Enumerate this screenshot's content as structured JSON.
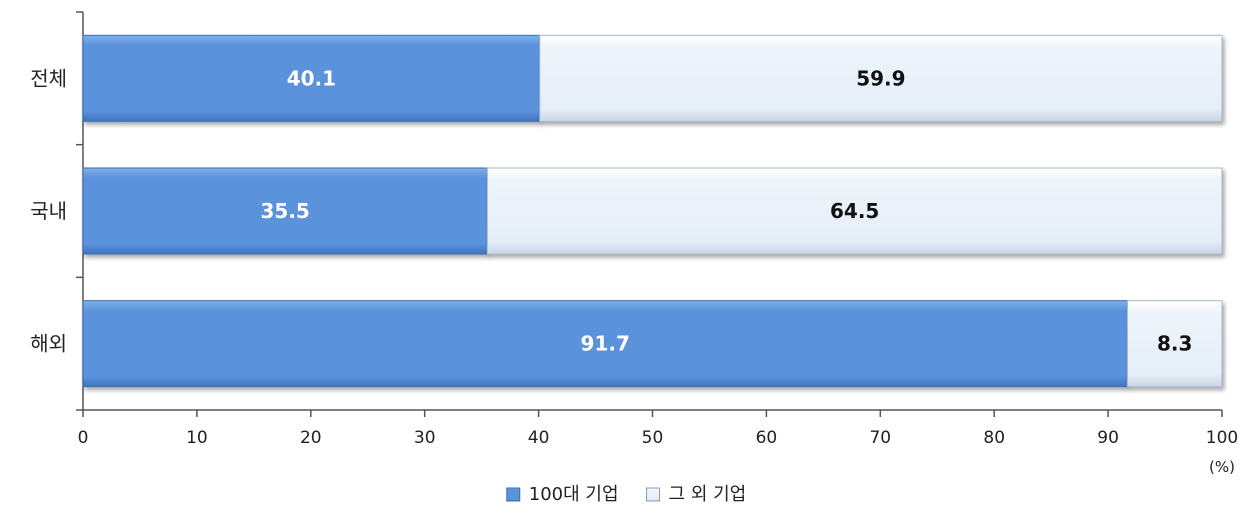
{
  "chart_data": {
    "type": "bar",
    "orientation": "horizontal",
    "stacked": true,
    "categories": [
      "전체",
      "국내",
      "해외"
    ],
    "series": [
      {
        "name": "100대 기업",
        "values": [
          40.1,
          35.5,
          91.7
        ],
        "color": "#5a93dc",
        "label_color": "#ffffff"
      },
      {
        "name": "그 외 기업",
        "values": [
          59.9,
          64.5,
          8.3
        ],
        "color": "#e9f1fa",
        "label_color": "#111111"
      }
    ],
    "xlim": [
      0,
      100
    ],
    "xticks": [
      0,
      10,
      20,
      30,
      40,
      50,
      60,
      70,
      80,
      90,
      100
    ],
    "unit_label": "(%)",
    "legend_position": "bottom",
    "grid": false
  }
}
